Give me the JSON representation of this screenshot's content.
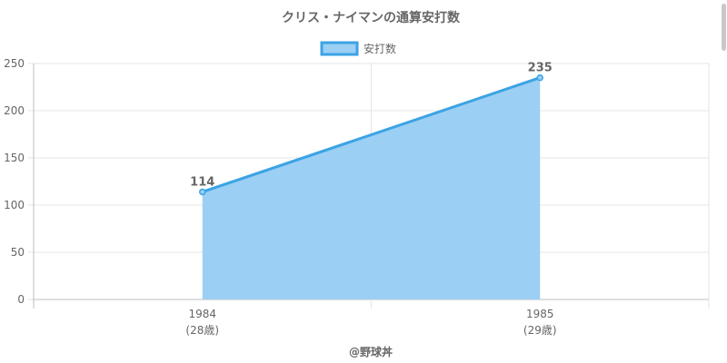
{
  "chart_data": {
    "type": "area",
    "title": "クリス・ナイマンの通算安打数",
    "legend": {
      "label": "安打数",
      "position": "top"
    },
    "categories": [
      "1984",
      "1985"
    ],
    "category_sublabels": [
      "(28歳)",
      "(29歳)"
    ],
    "series": [
      {
        "name": "安打数",
        "values": [
          114,
          235
        ]
      }
    ],
    "data_labels": [
      "114",
      "235"
    ],
    "ylim": [
      0,
      250
    ],
    "yticks": [
      0,
      50,
      100,
      150,
      200,
      250
    ],
    "ytick_labels": [
      "0",
      "50",
      "100",
      "150",
      "200",
      "250"
    ],
    "grid": true,
    "colors": {
      "line": "#3ba3e4",
      "fill": "#9bcff4",
      "grid": "#e6e6e6",
      "axis": "#bfbfbf",
      "text": "#666666"
    }
  },
  "footer": {
    "credit": "@野球丼"
  }
}
